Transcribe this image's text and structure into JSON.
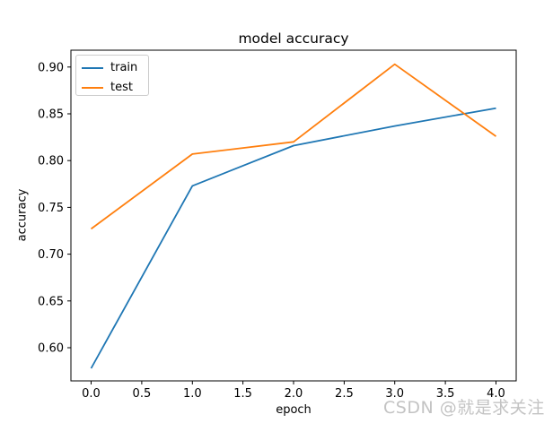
{
  "watermark": {
    "text": "CSDN @就是求关注",
    "color": "#b9b9b9"
  },
  "chart_data": {
    "type": "line",
    "title": "model accuracy",
    "xlabel": "epoch",
    "ylabel": "accuracy",
    "x": [
      0,
      1,
      2,
      3,
      4
    ],
    "series": [
      {
        "name": "train",
        "color": "#1f77b4",
        "values": [
          0.578,
          0.773,
          0.816,
          0.837,
          0.856
        ]
      },
      {
        "name": "test",
        "color": "#ff7f0e",
        "values": [
          0.727,
          0.807,
          0.82,
          0.903,
          0.826
        ]
      }
    ],
    "xlim": [
      -0.2,
      4.2
    ],
    "ylim": [
      0.5646,
      0.918
    ],
    "xticks": {
      "values": [
        0,
        0.5,
        1,
        1.5,
        2,
        2.5,
        3,
        3.5,
        4
      ],
      "labels": [
        "0.0",
        "0.5",
        "1.0",
        "1.5",
        "2.0",
        "2.5",
        "3.0",
        "3.5",
        "4.0"
      ]
    },
    "yticks": {
      "values": [
        0.6,
        0.65,
        0.7,
        0.75,
        0.8,
        0.85,
        0.9
      ],
      "labels": [
        "0.60",
        "0.65",
        "0.70",
        "0.75",
        "0.80",
        "0.85",
        "0.90"
      ]
    },
    "legend": {
      "location": "upper left"
    },
    "grid": false,
    "line_width": 1.8
  }
}
